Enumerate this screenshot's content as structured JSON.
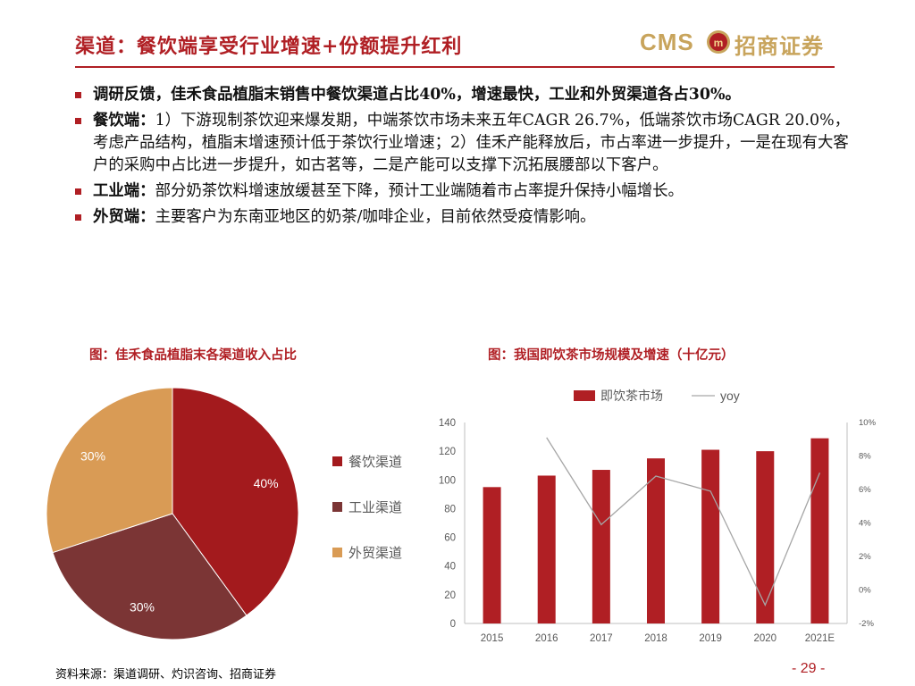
{
  "header": {
    "title": "渠道：餐饮端享受行业增速+份额提升红利",
    "logo_en": "CMS",
    "logo_cn": "招商证券",
    "brand_color": "#b01f24",
    "logo_color": "#c8a45c"
  },
  "bullets": [
    {
      "lead": "",
      "text": "调研反馈，佳禾食品植脂末销售中餐饮渠道占比40%，增速最快，工业和外贸渠道各占30%。"
    },
    {
      "lead": "餐饮端：",
      "text": "1）下游现制茶饮迎来爆发期，中端茶饮市场未来五年CAGR 26.7%，低端茶饮市场CAGR 20.0%，考虑产品结构，植脂末增速预计低于茶饮行业增速；2）佳禾产能释放后，市占率进一步提升，一是在现有大客户的采购中占比进一步提升，如古茗等，二是产能可以支撑下沉拓展腰部以下客户。"
    },
    {
      "lead": "工业端：",
      "text": "部分奶茶饮料增速放缓甚至下降，预计工业端随着市占率提升保持小幅增长。"
    },
    {
      "lead": "外贸端：",
      "text": "主要客户为东南亚地区的奶茶/咖啡企业，目前依然受疫情影响。"
    }
  ],
  "pie_title": "图：佳禾食品植脂末各渠道收入占比",
  "bar_title": "图：我国即饮茶市场规模及增速（十亿元）",
  "chart_data": [
    {
      "type": "pie",
      "categories": [
        "餐饮渠道",
        "工业渠道",
        "外贸渠道"
      ],
      "values": [
        40,
        30,
        30
      ],
      "labels": [
        "40%",
        "30%",
        "30%"
      ],
      "colors": [
        "#a31a1d",
        "#7b3535",
        "#d99b55"
      ],
      "legend": "right"
    },
    {
      "type": "bar",
      "categories": [
        "2015",
        "2016",
        "2017",
        "2018",
        "2019",
        "2020",
        "2021E"
      ],
      "series": [
        {
          "name": "即饮茶市场",
          "values": [
            95,
            103,
            107,
            115,
            121,
            120,
            129
          ],
          "color": "#b01f24"
        },
        {
          "name": "yoy",
          "type": "line",
          "axis": "right",
          "values": [
            null,
            9.1,
            3.9,
            6.8,
            5.9,
            -0.9,
            7.0
          ],
          "color": "#a6a6a6"
        }
      ],
      "ylim": [
        0,
        140
      ],
      "yticks": [
        "0",
        "20",
        "40",
        "60",
        "80",
        "100",
        "120",
        "140"
      ],
      "y2lim": [
        -2,
        10
      ],
      "y2ticks": [
        "-2%",
        "0%",
        "2%",
        "4%",
        "6%",
        "8%",
        "10%"
      ],
      "legend": "top"
    }
  ],
  "footer": {
    "source": "资料来源：渠道调研、灼识咨询、招商证券",
    "page": "- 29 -"
  }
}
